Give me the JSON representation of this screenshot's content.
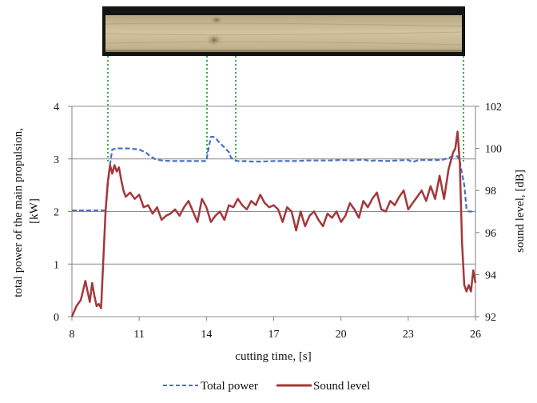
{
  "chart_data": {
    "type": "line",
    "xlabel": "cutting time, [s]",
    "ylabel_left": "total power of the main propulsion,\n[kW]",
    "ylabel_right": "sound level, [dB]",
    "xlim": [
      8,
      26
    ],
    "ylim_left": [
      0,
      4
    ],
    "ylim_right": [
      92,
      102
    ],
    "x_ticks": [
      "8",
      "11",
      "14",
      "17",
      "20",
      "23",
      "26"
    ],
    "y_left_ticks": [
      "0",
      "1",
      "2",
      "3",
      "4"
    ],
    "y_right_ticks": [
      "92",
      "94",
      "96",
      "98",
      "100",
      "102"
    ],
    "grid": true,
    "legend_placement": "bottom",
    "series": [
      {
        "name": "Total power",
        "axis": "left",
        "color": "#4a6fc4",
        "dash": true,
        "x": [
          8,
          9.5,
          9.6,
          9.7,
          9.8,
          10.0,
          10.5,
          11.0,
          11.3,
          11.5,
          11.7,
          12.0,
          12.5,
          13.0,
          13.5,
          14.0,
          14.05,
          14.2,
          14.3,
          14.4,
          14.6,
          14.8,
          15.0,
          15.1,
          15.3,
          15.5,
          15.7,
          16.0,
          16.5,
          17.0,
          17.5,
          18.0,
          18.5,
          19.0,
          19.5,
          20.0,
          20.5,
          21.0,
          21.3,
          21.5,
          22.0,
          22.5,
          23.0,
          23.2,
          23.4,
          23.6,
          24.0,
          24.5,
          25.0,
          25.2,
          25.3,
          25.5,
          25.6,
          25.7,
          26
        ],
        "values": [
          2.02,
          2.02,
          2.5,
          2.9,
          3.18,
          3.2,
          3.2,
          3.18,
          3.12,
          3.05,
          3.0,
          2.97,
          2.96,
          2.96,
          2.96,
          2.96,
          3.1,
          3.42,
          3.42,
          3.4,
          3.3,
          3.22,
          3.13,
          3.02,
          2.97,
          2.95,
          2.96,
          2.95,
          2.95,
          2.96,
          2.96,
          2.96,
          2.97,
          2.97,
          2.97,
          2.98,
          2.97,
          2.99,
          2.96,
          2.97,
          2.96,
          2.97,
          2.98,
          2.94,
          2.97,
          2.98,
          2.98,
          2.98,
          3.05,
          3.05,
          2.95,
          2.5,
          2.05,
          2.0,
          2.0
        ]
      },
      {
        "name": "Sound level",
        "axis": "right",
        "color": "#a5373a",
        "dash": false,
        "x": [
          8,
          8.2,
          8.4,
          8.6,
          8.8,
          8.9,
          9.0,
          9.1,
          9.2,
          9.3,
          9.5,
          9.6,
          9.7,
          9.8,
          9.9,
          10.0,
          10.1,
          10.2,
          10.3,
          10.4,
          10.6,
          10.8,
          11.0,
          11.2,
          11.4,
          11.6,
          11.8,
          12.0,
          12.2,
          12.4,
          12.6,
          12.8,
          13.0,
          13.2,
          13.4,
          13.6,
          13.8,
          14.0,
          14.2,
          14.4,
          14.6,
          14.8,
          15.0,
          15.2,
          15.4,
          15.6,
          15.8,
          16.0,
          16.2,
          16.4,
          16.6,
          16.8,
          17.0,
          17.2,
          17.4,
          17.6,
          17.8,
          18.0,
          18.2,
          18.4,
          18.6,
          18.8,
          19.0,
          19.2,
          19.4,
          19.6,
          19.8,
          20.0,
          20.2,
          20.4,
          20.6,
          20.8,
          21.0,
          21.2,
          21.4,
          21.6,
          21.8,
          22.0,
          22.2,
          22.4,
          22.6,
          22.8,
          23.0,
          23.2,
          23.4,
          23.6,
          23.8,
          24.0,
          24.2,
          24.4,
          24.6,
          24.8,
          25.0,
          25.1,
          25.2,
          25.3,
          25.4,
          25.5,
          25.6,
          25.7,
          25.8,
          25.9,
          26
        ],
        "values": [
          92.0,
          92.5,
          92.8,
          93.7,
          92.7,
          93.6,
          93.0,
          92.5,
          92.6,
          92.4,
          97.0,
          98.4,
          99.2,
          98.8,
          99.2,
          98.9,
          99.1,
          98.5,
          98.0,
          97.7,
          97.9,
          97.6,
          97.8,
          97.2,
          97.3,
          96.9,
          97.2,
          96.6,
          96.8,
          96.9,
          97.1,
          96.8,
          97.2,
          97.5,
          97.0,
          96.5,
          97.6,
          97.2,
          96.5,
          96.8,
          97.0,
          96.6,
          97.3,
          97.2,
          97.6,
          97.3,
          97.1,
          97.5,
          97.3,
          97.8,
          97.4,
          97.2,
          97.3,
          97.1,
          96.5,
          97.2,
          97.0,
          96.1,
          97.0,
          96.3,
          96.8,
          97.0,
          96.6,
          96.3,
          96.9,
          96.7,
          97.0,
          96.5,
          96.8,
          97.4,
          97.1,
          96.7,
          97.5,
          97.2,
          97.6,
          97.9,
          97.1,
          97.0,
          97.5,
          97.3,
          97.7,
          98.0,
          97.1,
          97.4,
          97.7,
          98.0,
          97.5,
          98.2,
          97.6,
          98.7,
          97.6,
          99.0,
          99.8,
          100.0,
          100.8,
          99.3,
          95.5,
          93.5,
          93.2,
          93.5,
          93.2,
          94.2,
          93.6
        ]
      }
    ]
  }
}
